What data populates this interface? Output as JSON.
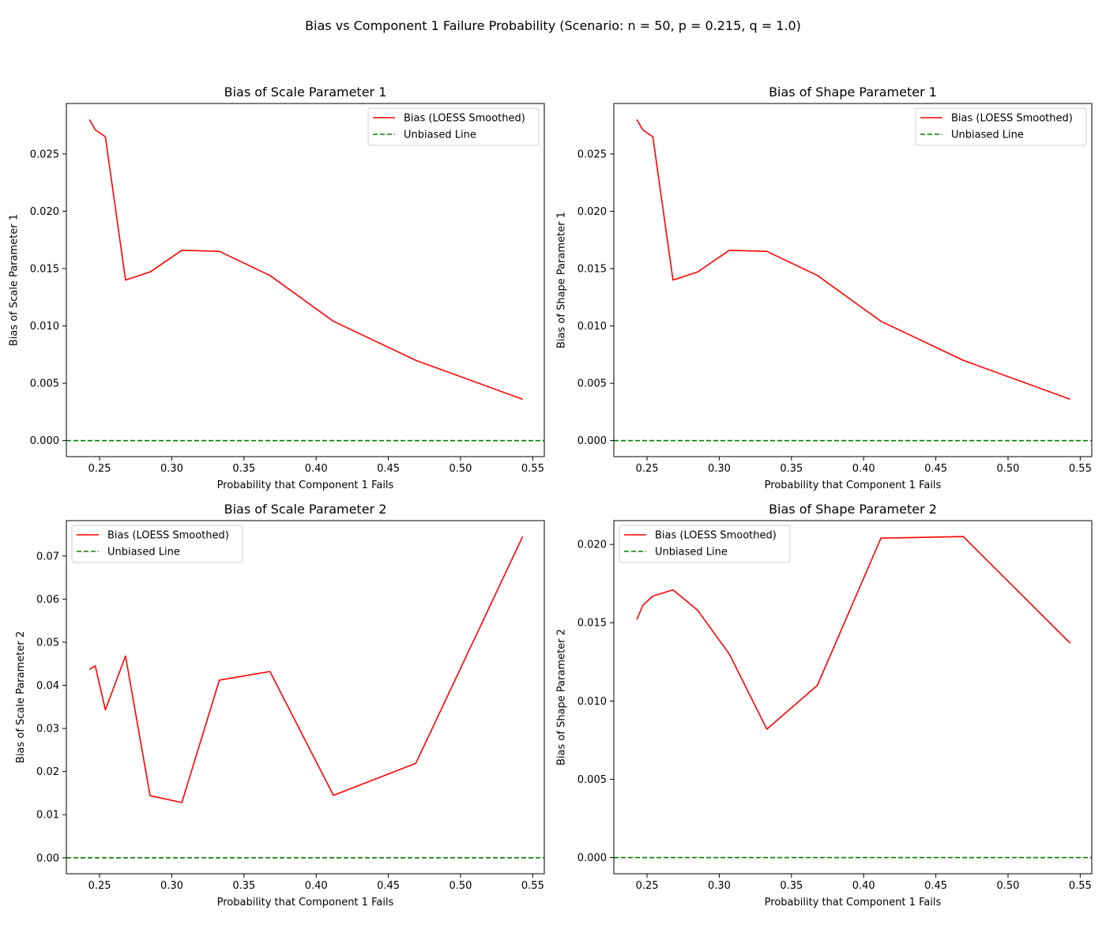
{
  "figure_title": "Bias vs Component 1 Failure Probability (Scenario: n = 50, p = 0.215, q = 1.0)",
  "colors": {
    "bias_line": "#ff0000",
    "unbiased_line": "#008000"
  },
  "chart_data": [
    {
      "type": "line",
      "title": "Bias of Scale Parameter 1",
      "xlabel": "Probability that Component 1 Fails",
      "ylabel": "Bias of Scale Parameter 1",
      "xlim": [
        0.227,
        0.558
      ],
      "ylim": [
        -0.0014,
        0.0294
      ],
      "xticks": [
        0.25,
        0.3,
        0.35,
        0.4,
        0.45,
        0.5,
        0.55
      ],
      "xtick_labels": [
        "0.25",
        "0.30",
        "0.35",
        "0.40",
        "0.45",
        "0.50",
        "0.55"
      ],
      "yticks": [
        0.0,
        0.005,
        0.01,
        0.015,
        0.02,
        0.025
      ],
      "ytick_labels": [
        "0.000",
        "0.005",
        "0.010",
        "0.015",
        "0.020",
        "0.025"
      ],
      "legend": {
        "location": "upper right",
        "entries": [
          "Bias (LOESS Smoothed)",
          "Unbiased Line"
        ]
      },
      "series": [
        {
          "name": "Bias (LOESS Smoothed)",
          "style": "solid",
          "x": [
            0.243,
            0.247,
            0.254,
            0.268,
            0.285,
            0.307,
            0.333,
            0.368,
            0.412,
            0.469,
            0.543
          ],
          "y": [
            0.028,
            0.0271,
            0.0265,
            0.014,
            0.0147,
            0.0166,
            0.0165,
            0.0144,
            0.0104,
            0.007,
            0.0036
          ]
        },
        {
          "name": "Unbiased Line",
          "style": "dashed",
          "hline": 0.0
        }
      ]
    },
    {
      "type": "line",
      "title": "Bias of Shape Parameter 1",
      "xlabel": "Probability that Component 1 Fails",
      "ylabel": "Bias of Shape Parameter 1",
      "xlim": [
        0.227,
        0.558
      ],
      "ylim": [
        -0.0014,
        0.0294
      ],
      "xticks": [
        0.25,
        0.3,
        0.35,
        0.4,
        0.45,
        0.5,
        0.55
      ],
      "xtick_labels": [
        "0.25",
        "0.30",
        "0.35",
        "0.40",
        "0.45",
        "0.50",
        "0.55"
      ],
      "yticks": [
        0.0,
        0.005,
        0.01,
        0.015,
        0.02,
        0.025
      ],
      "ytick_labels": [
        "0.000",
        "0.005",
        "0.010",
        "0.015",
        "0.020",
        "0.025"
      ],
      "legend": {
        "location": "upper right",
        "entries": [
          "Bias (LOESS Smoothed)",
          "Unbiased Line"
        ]
      },
      "series": [
        {
          "name": "Bias (LOESS Smoothed)",
          "style": "solid",
          "x": [
            0.243,
            0.247,
            0.254,
            0.268,
            0.285,
            0.307,
            0.333,
            0.368,
            0.412,
            0.469,
            0.543
          ],
          "y": [
            0.028,
            0.0271,
            0.0265,
            0.014,
            0.0147,
            0.0166,
            0.0165,
            0.0144,
            0.0104,
            0.007,
            0.0036
          ]
        },
        {
          "name": "Unbiased Line",
          "style": "dashed",
          "hline": 0.0
        }
      ]
    },
    {
      "type": "line",
      "title": "Bias of Scale Parameter 2",
      "xlabel": "Probability that Component 1 Fails",
      "ylabel": "Bias of Scale Parameter 2",
      "xlim": [
        0.227,
        0.558
      ],
      "ylim": [
        -0.0037,
        0.0782
      ],
      "xticks": [
        0.25,
        0.3,
        0.35,
        0.4,
        0.45,
        0.5,
        0.55
      ],
      "xtick_labels": [
        "0.25",
        "0.30",
        "0.35",
        "0.40",
        "0.45",
        "0.50",
        "0.55"
      ],
      "yticks": [
        0.0,
        0.01,
        0.02,
        0.03,
        0.04,
        0.05,
        0.06,
        0.07
      ],
      "ytick_labels": [
        "0.00",
        "0.01",
        "0.02",
        "0.03",
        "0.04",
        "0.05",
        "0.06",
        "0.07"
      ],
      "legend": {
        "location": "upper left",
        "entries": [
          "Bias (LOESS Smoothed)",
          "Unbiased Line"
        ]
      },
      "series": [
        {
          "name": "Bias (LOESS Smoothed)",
          "style": "solid",
          "x": [
            0.243,
            0.247,
            0.254,
            0.268,
            0.285,
            0.307,
            0.333,
            0.368,
            0.412,
            0.469,
            0.543
          ],
          "y": [
            0.0437,
            0.0445,
            0.0343,
            0.0468,
            0.0144,
            0.0128,
            0.0412,
            0.0432,
            0.0145,
            0.0219,
            0.0745
          ]
        },
        {
          "name": "Unbiased Line",
          "style": "dashed",
          "hline": 0.0
        }
      ]
    },
    {
      "type": "line",
      "title": "Bias of Shape Parameter 2",
      "xlabel": "Probability that Component 1 Fails",
      "ylabel": "Bias of Shape Parameter 2",
      "xlim": [
        0.227,
        0.558
      ],
      "ylim": [
        -0.00103,
        0.02152
      ],
      "xticks": [
        0.25,
        0.3,
        0.35,
        0.4,
        0.45,
        0.5,
        0.55
      ],
      "xtick_labels": [
        "0.25",
        "0.30",
        "0.35",
        "0.40",
        "0.45",
        "0.50",
        "0.55"
      ],
      "yticks": [
        0.0,
        0.005,
        0.01,
        0.015,
        0.02
      ],
      "ytick_labels": [
        "0.000",
        "0.005",
        "0.010",
        "0.015",
        "0.020"
      ],
      "legend": {
        "location": "upper left",
        "entries": [
          "Bias (LOESS Smoothed)",
          "Unbiased Line"
        ]
      },
      "series": [
        {
          "name": "Bias (LOESS Smoothed)",
          "style": "solid",
          "x": [
            0.243,
            0.247,
            0.254,
            0.268,
            0.285,
            0.307,
            0.333,
            0.368,
            0.412,
            0.469,
            0.543
          ],
          "y": [
            0.0152,
            0.0161,
            0.0167,
            0.0171,
            0.0158,
            0.013,
            0.0082,
            0.011,
            0.0204,
            0.0205,
            0.0137
          ]
        },
        {
          "name": "Unbiased Line",
          "style": "dashed",
          "hline": 0.0
        }
      ]
    }
  ]
}
